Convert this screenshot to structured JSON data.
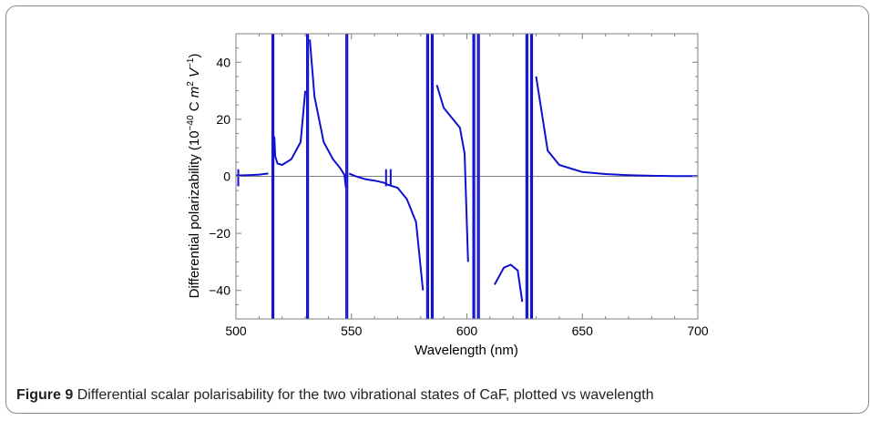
{
  "figure": {
    "label": "Figure 9",
    "caption": "Differential scalar polarisability for the two vibrational states of CaF, plotted vs wavelength"
  },
  "colors": {
    "curve": "#1010d0",
    "frame": "#808080",
    "zero_line": "#808080",
    "panel_border": "#8a8a8a"
  },
  "chart_data": {
    "type": "line",
    "title": "",
    "xlabel": "Wavelength (nm)",
    "ylabel": "Differential polarizability (10^-40 C m^2 V^-1)",
    "xlim": [
      500,
      700
    ],
    "ylim": [
      -50,
      50
    ],
    "x_ticks": [
      500,
      550,
      600,
      650,
      700
    ],
    "y_ticks": [
      -40,
      -20,
      0,
      20,
      40
    ],
    "x_tick_labels": [
      "500",
      "550",
      "600",
      "650",
      "700"
    ],
    "y_tick_labels": [
      "−40",
      "−20",
      "0",
      "20",
      "40"
    ],
    "grid": false,
    "zero_line": true,
    "resonances_nm": [
      516,
      531,
      548,
      583,
      585,
      603,
      605,
      626,
      628
    ],
    "narrow_features_nm": [
      501,
      565,
      567
    ],
    "series": [
      {
        "values": [
          {
            "x": 500,
            "y": 0.3
          },
          {
            "x": 505,
            "y": 0.4
          },
          {
            "x": 510,
            "y": 0.6
          },
          {
            "x": 514,
            "y": 1.0
          },
          {
            "x": 516.6,
            "y": 14
          },
          {
            "x": 517,
            "y": 7
          },
          {
            "x": 518,
            "y": 4.5
          },
          {
            "x": 520,
            "y": 4
          },
          {
            "x": 524,
            "y": 6
          },
          {
            "x": 528,
            "y": 12
          },
          {
            "x": 530,
            "y": 30
          },
          {
            "x": 532,
            "y": 48
          },
          {
            "x": 534,
            "y": 28
          },
          {
            "x": 538,
            "y": 12
          },
          {
            "x": 542,
            "y": 6
          },
          {
            "x": 545,
            "y": 3
          },
          {
            "x": 547,
            "y": 0.5
          },
          {
            "x": 547.6,
            "y": -4
          },
          {
            "x": 549,
            "y": 1
          },
          {
            "x": 552,
            "y": 0
          },
          {
            "x": 556,
            "y": -1
          },
          {
            "x": 560,
            "y": -1.5
          },
          {
            "x": 564,
            "y": -2.2
          },
          {
            "x": 566,
            "y": -3
          },
          {
            "x": 570,
            "y": -4
          },
          {
            "x": 574,
            "y": -8
          },
          {
            "x": 578,
            "y": -16
          },
          {
            "x": 581,
            "y": -40
          },
          {
            "x": 587,
            "y": 32
          },
          {
            "x": 590,
            "y": 24
          },
          {
            "x": 594,
            "y": 20
          },
          {
            "x": 597,
            "y": 17
          },
          {
            "x": 599,
            "y": 8
          },
          {
            "x": 600.5,
            "y": -30
          },
          {
            "x": 612,
            "y": -38
          },
          {
            "x": 616,
            "y": -32
          },
          {
            "x": 619,
            "y": -31
          },
          {
            "x": 622,
            "y": -33
          },
          {
            "x": 624,
            "y": -44
          },
          {
            "x": 630,
            "y": 35
          },
          {
            "x": 635,
            "y": 9
          },
          {
            "x": 640,
            "y": 4
          },
          {
            "x": 650,
            "y": 1.5
          },
          {
            "x": 660,
            "y": 0.8
          },
          {
            "x": 670,
            "y": 0.4
          },
          {
            "x": 680,
            "y": 0.2
          },
          {
            "x": 690,
            "y": 0.1
          },
          {
            "x": 700,
            "y": 0.05
          }
        ]
      }
    ]
  }
}
